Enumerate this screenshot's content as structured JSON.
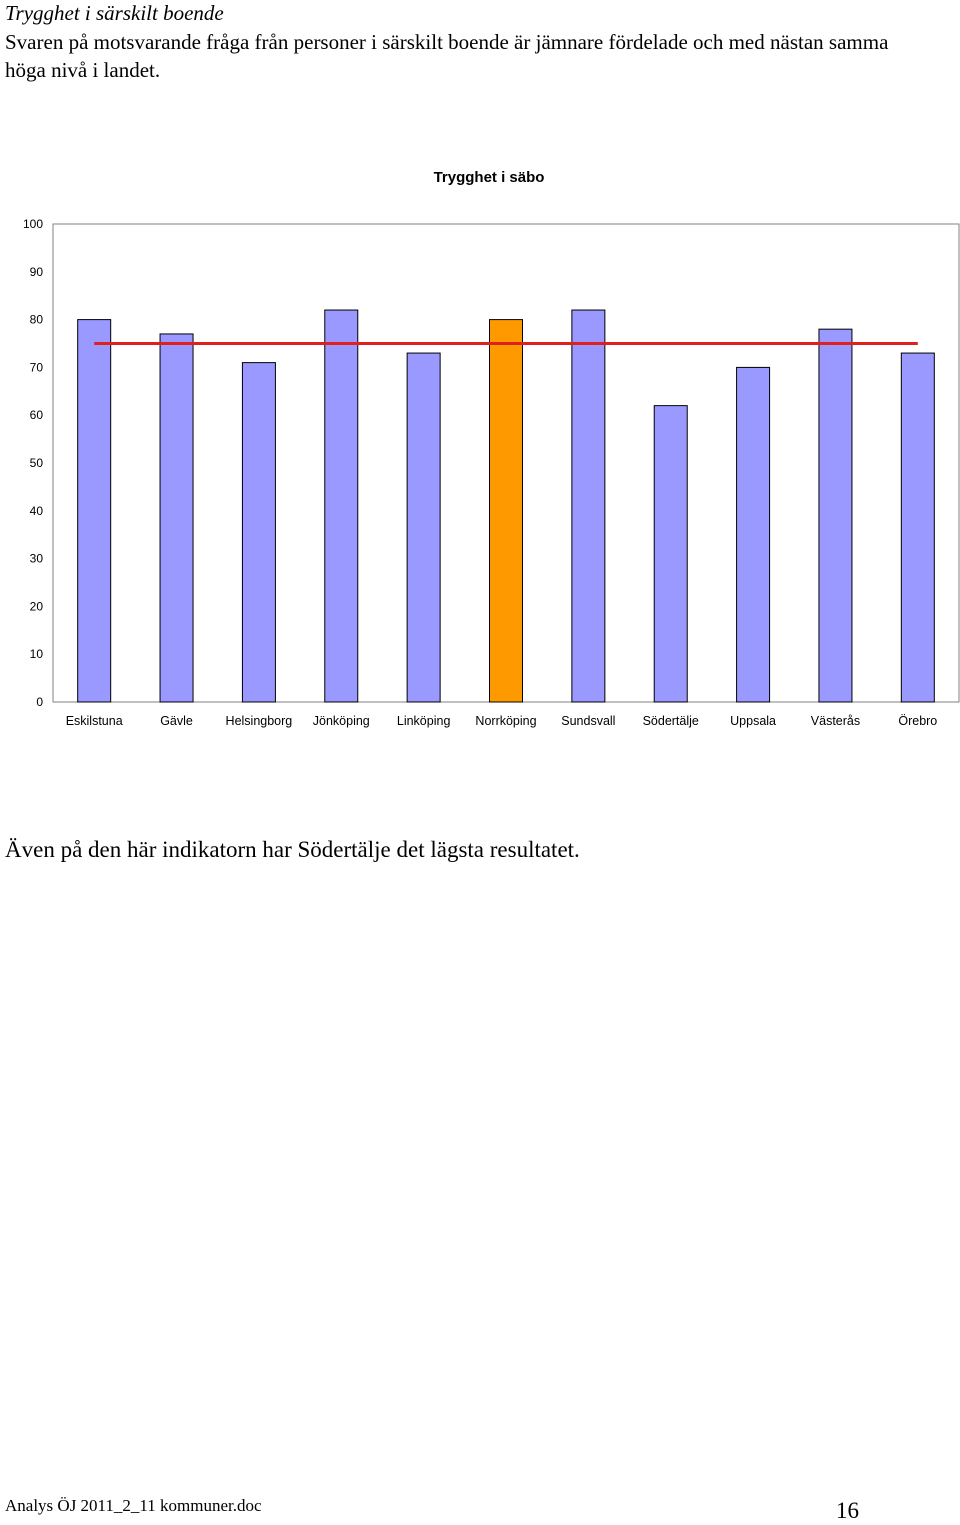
{
  "document": {
    "heading": "Trygghet i särskilt boende",
    "intro": "Svaren på motsvarande fråga från personer i särskilt boende är jämnare fördelade och med nästan samma höga nivå i landet.",
    "conclusion": "Även på den här indikatorn har Södertälje det lägsta resultatet.",
    "footer_file": "Analys ÖJ 2011_2_11 kommuner.doc",
    "page_number": "16"
  },
  "chart_data": {
    "type": "bar",
    "title": "Trygghet i säbo",
    "categories": [
      "Eskilstuna",
      "Gävle",
      "Helsingborg",
      "Jönköping",
      "Linköping",
      "Norrköping",
      "Sundsvall",
      "Södertälje",
      "Uppsala",
      "Västerås",
      "Örebro"
    ],
    "values": [
      80,
      77,
      71,
      82,
      73,
      80,
      82,
      62,
      70,
      78,
      73
    ],
    "ylim": [
      0,
      100
    ],
    "yticks": [
      "0",
      "10",
      "20",
      "30",
      "40",
      "50",
      "60",
      "70",
      "80",
      "90",
      "100"
    ],
    "reference_line": 75,
    "highlight_category": "Norrköping",
    "colors": {
      "bar": "#9999ff",
      "highlight": "#ff9900",
      "reference_line": "#e0201f",
      "outline": "#000000"
    },
    "grid": false
  }
}
